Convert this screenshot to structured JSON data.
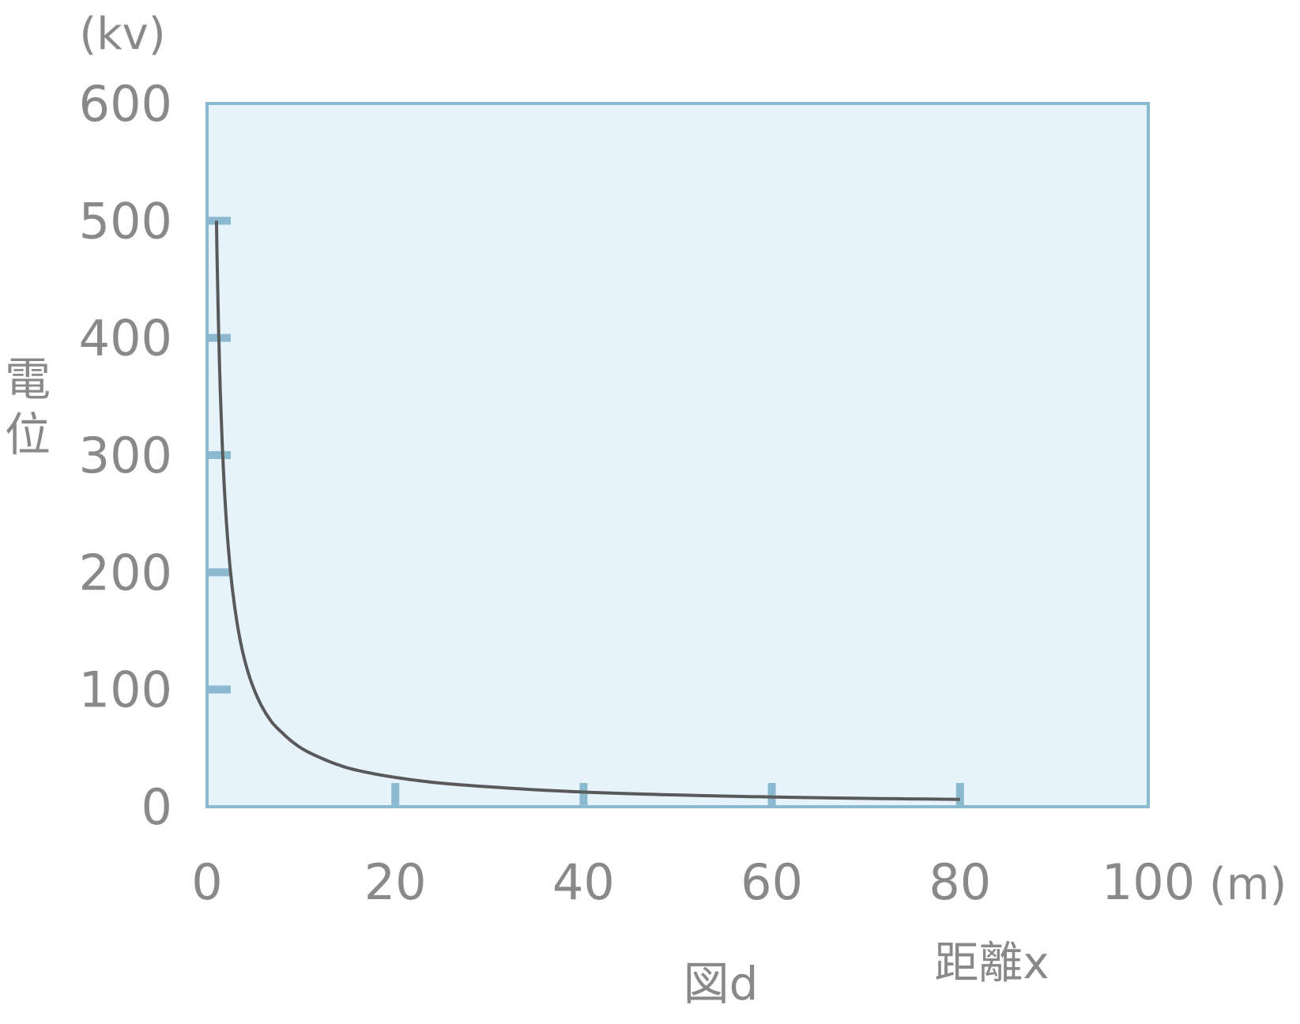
{
  "chart_data": {
    "type": "line",
    "title": "図d",
    "xlabel": "距離x",
    "ylabel": "電位",
    "x_unit": "(m)",
    "y_unit": "(kv)",
    "xlim": [
      0,
      100
    ],
    "ylim": [
      0,
      600
    ],
    "x_ticks": [
      0,
      20,
      40,
      60,
      80,
      100
    ],
    "y_ticks": [
      0,
      100,
      200,
      300,
      400,
      500,
      600
    ],
    "grid": false,
    "colors": {
      "plot_bg": "#e6f3fb",
      "frame": "#8ab9d0",
      "line": "#595959",
      "text": "#898989"
    },
    "series": [
      {
        "x": [
          1,
          1.25,
          1.5,
          2,
          2.5,
          3,
          3.5,
          4,
          5,
          6,
          7,
          8,
          10,
          12,
          15,
          20,
          25,
          30,
          40,
          50,
          60,
          70,
          80
        ],
        "y": [
          500,
          400,
          333,
          250,
          200,
          167,
          143,
          125,
          100,
          83,
          71,
          63,
          50,
          42,
          33,
          25,
          20,
          17,
          12.5,
          10,
          8.3,
          7.1,
          6.3
        ]
      }
    ]
  }
}
